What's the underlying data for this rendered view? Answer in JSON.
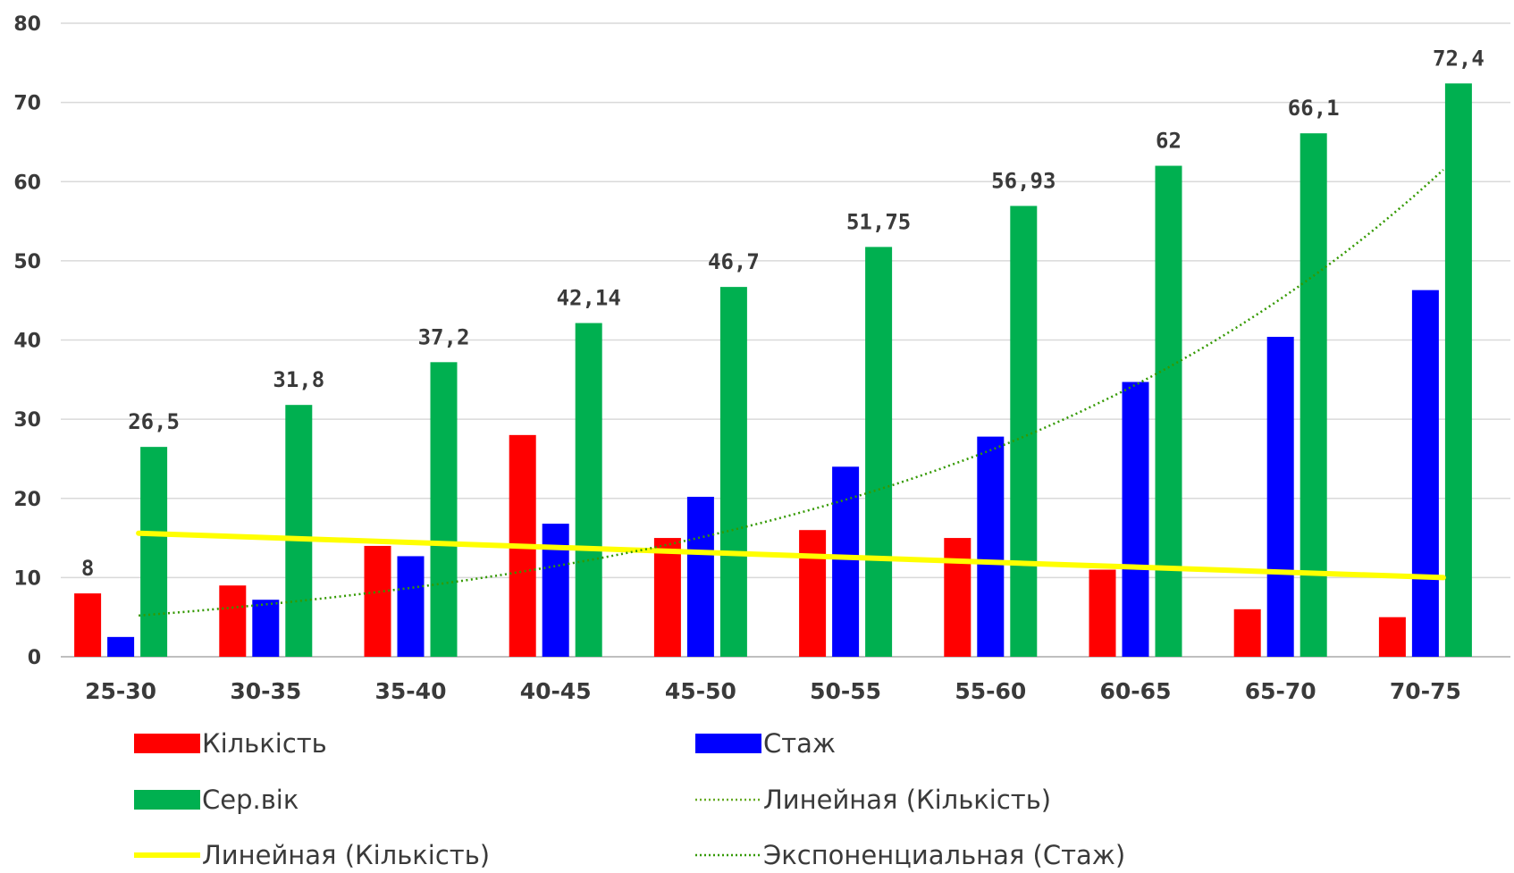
{
  "chart_data": {
    "type": "bar",
    "categories": [
      "25-30",
      "30-35",
      "35-40",
      "40-45",
      "45-50",
      "50-55",
      "55-60",
      "60-65",
      "65-70",
      "70-75"
    ],
    "ylim": [
      0,
      80
    ],
    "yticks": [
      0,
      10,
      20,
      30,
      40,
      50,
      60,
      70,
      80
    ],
    "grid": true,
    "legend_position": "bottom",
    "series": [
      {
        "name": "Кількість",
        "color": "#ff0000",
        "values": [
          8,
          9,
          14,
          28,
          15,
          16,
          15,
          11,
          6,
          5
        ]
      },
      {
        "name": "Стаж",
        "color": "#0000ff",
        "values": [
          2.5,
          7.2,
          12.7,
          16.8,
          20.2,
          24,
          27.8,
          34.7,
          40.4,
          46.3
        ]
      },
      {
        "name": "Сер.вік",
        "color": "#00b050",
        "values": [
          26.5,
          31.8,
          37.2,
          42.14,
          46.7,
          51.75,
          56.93,
          62,
          66.1,
          72.4
        ]
      }
    ],
    "data_labels": {
      "Кількість": [
        "8",
        "",
        "",
        "",
        "",
        "",
        "",
        "",
        "",
        ""
      ],
      "Сер.вік": [
        "26,5",
        "31,8",
        "37,2",
        "42,14",
        "46,7",
        "51,75",
        "56,93",
        "62",
        "66,1",
        "72,4"
      ]
    },
    "trendlines": [
      {
        "name": "Линейная (Кількість)",
        "type": "linear",
        "color": "#ffff00",
        "style": "solid",
        "values": [
          15.6,
          10.0
        ]
      },
      {
        "name": "Экспоненциальная (Стаж)",
        "type": "exponential",
        "color": "#339900",
        "style": "dotted",
        "values": [
          5.2,
          61.5
        ]
      }
    ],
    "legend": [
      {
        "label": "Кількість",
        "color": "#ff0000",
        "symbol": "box"
      },
      {
        "label": "Стаж",
        "color": "#0000ff",
        "symbol": "box"
      },
      {
        "label": "Сер.вік",
        "color": "#00b050",
        "symbol": "box"
      },
      {
        "label": "Линейная (Кількість)",
        "color": "#66aa22",
        "symbol": "dotted-line"
      },
      {
        "label": "Линейная (Кількість)",
        "color": "#ffff00",
        "symbol": "solid-line"
      },
      {
        "label": "Экспоненциальная (Стаж)",
        "color": "#339900",
        "symbol": "dotted-line"
      }
    ]
  }
}
